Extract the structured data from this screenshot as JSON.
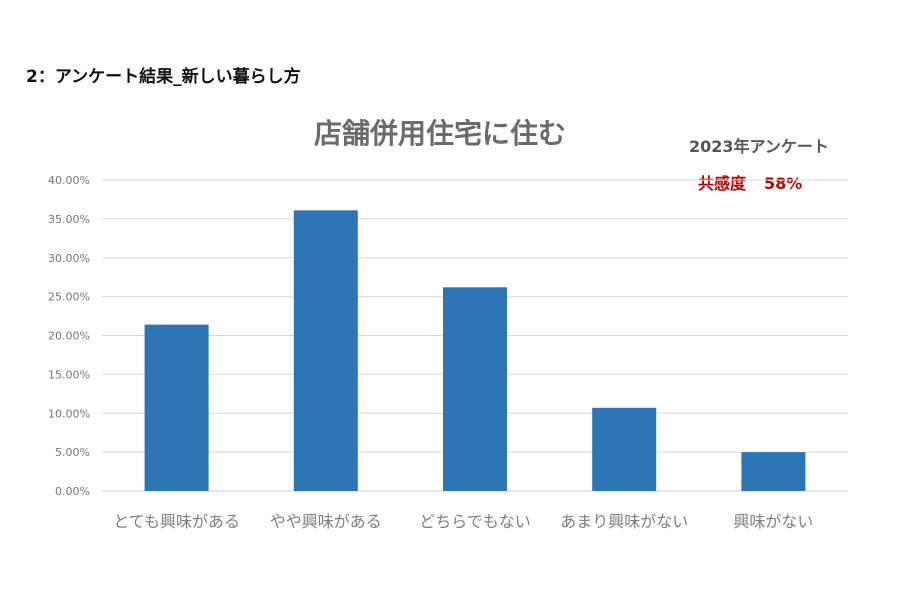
{
  "header": {
    "heading": "2：アンケート結果_新しい暮らし方"
  },
  "annotation": {
    "survey_label": "2023年アンケート",
    "empathy_label": "共感度",
    "empathy_value": "58%"
  },
  "colors": {
    "bar": "#2e75b6",
    "grid": "#d9d9d9",
    "empathy": "#c00000"
  },
  "chart_data": {
    "type": "bar",
    "title": "店舗併用住宅に住む",
    "categories": [
      "とても興味がある",
      "やや興味がある",
      "どちらでもない",
      "あまり興味がない",
      "興味がない"
    ],
    "values": [
      21.4,
      36.1,
      26.2,
      10.7,
      5.0
    ],
    "ylim": [
      0,
      40
    ],
    "yticks": [
      "0.00%",
      "5.00%",
      "10.00%",
      "15.00%",
      "20.00%",
      "25.00%",
      "30.00%",
      "35.00%",
      "40.00%"
    ],
    "xlabel": "",
    "ylabel": "",
    "grid": true,
    "legend": "none"
  }
}
